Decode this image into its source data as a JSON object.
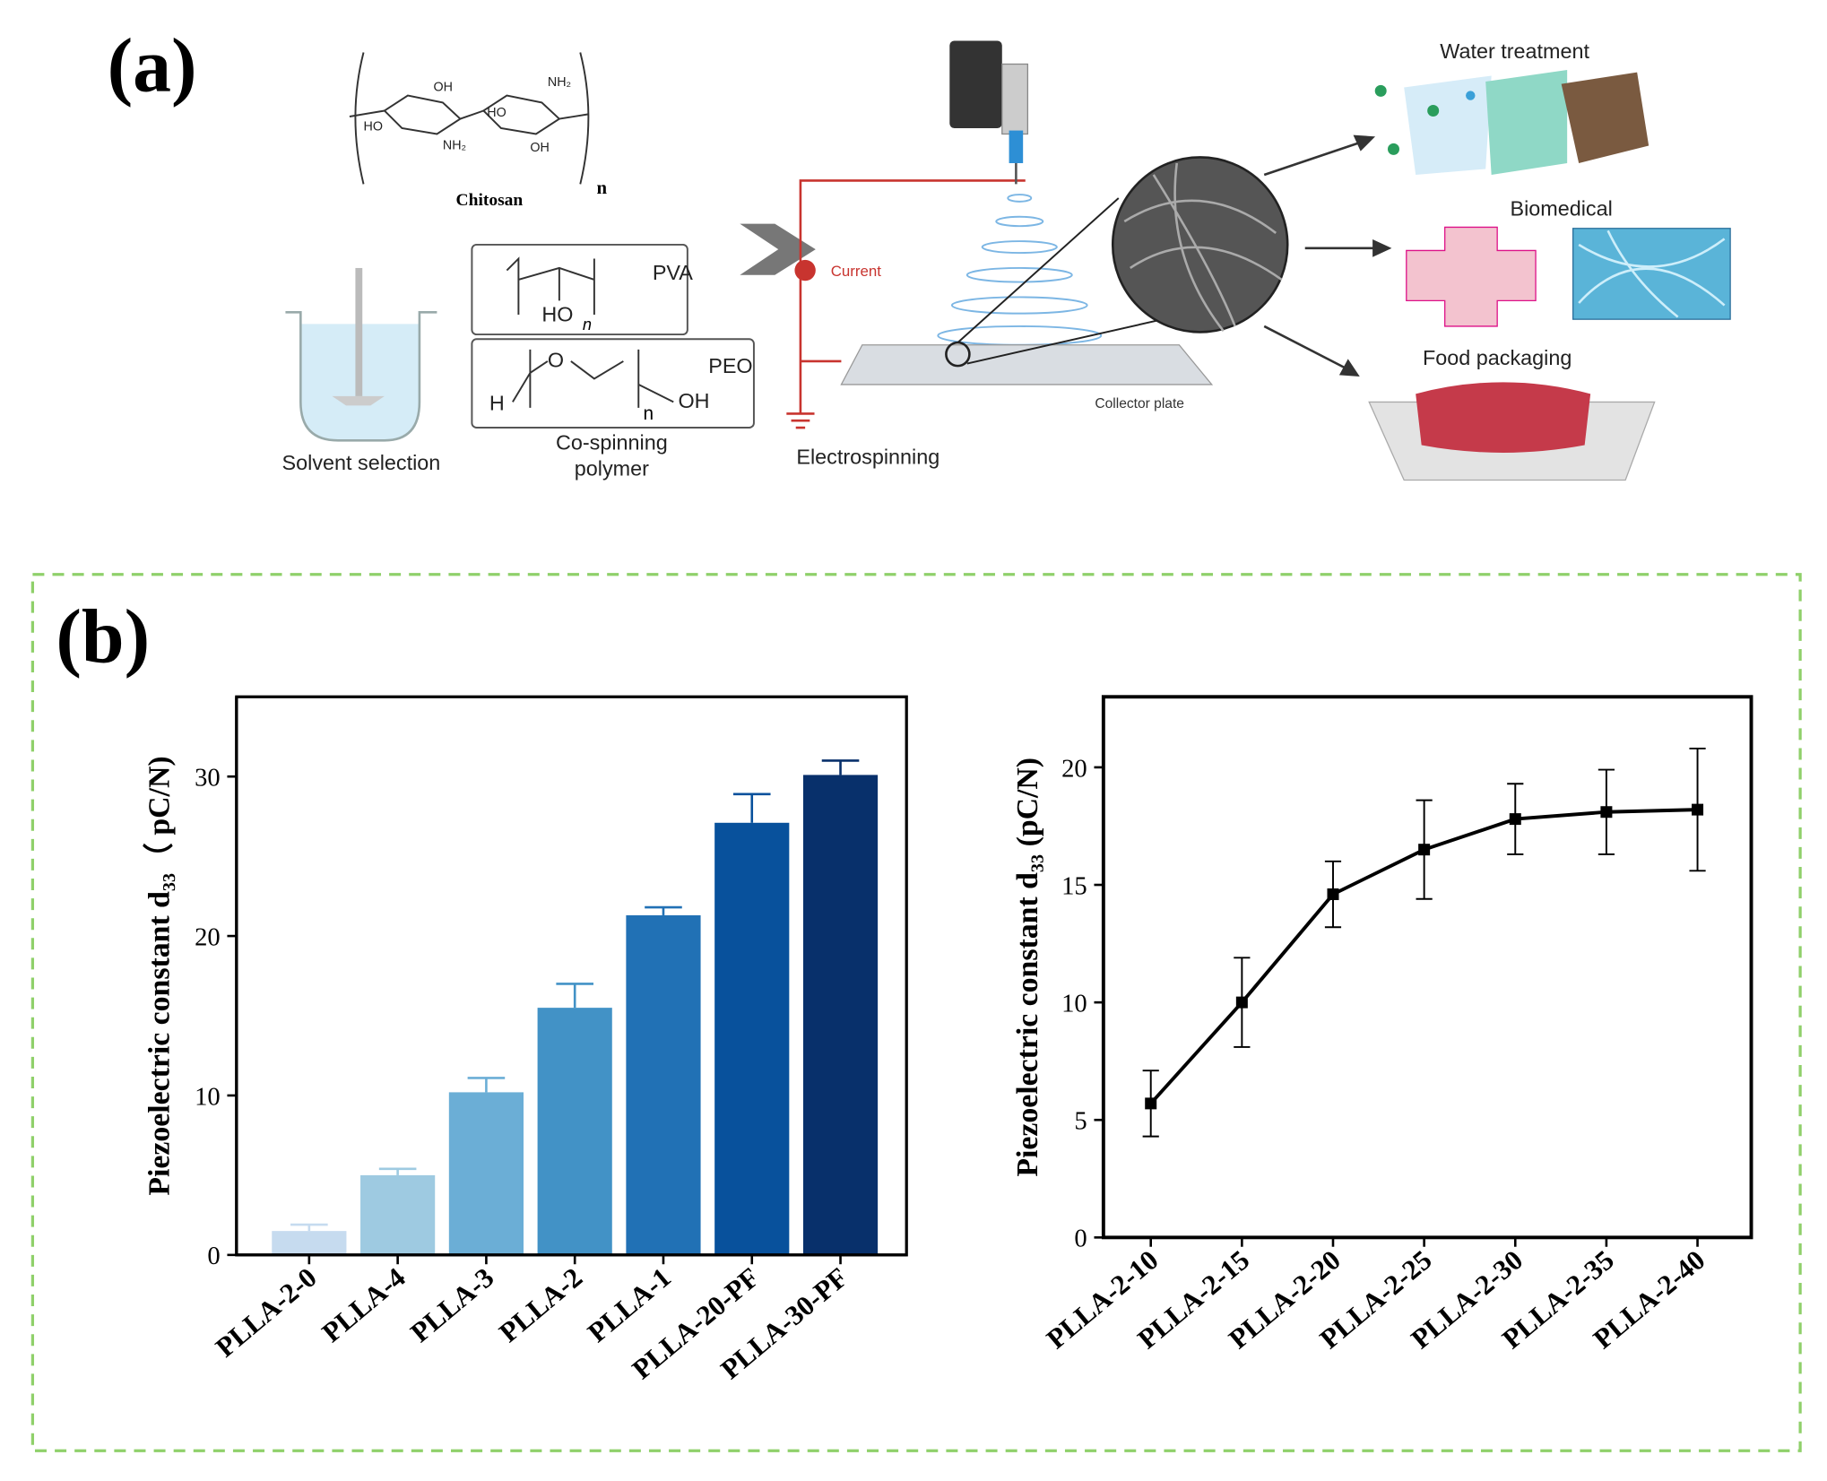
{
  "figure": {
    "panel_a": "(a)",
    "panel_b": "(b)"
  },
  "diagram": {
    "chitosan": {
      "label": "Chitosan",
      "groups": [
        "OH",
        "NH₂",
        "HO",
        "NH₂",
        "OH",
        "HO"
      ],
      "repeat": "n"
    },
    "pva": {
      "label": "PVA",
      "group": "HO",
      "repeat": "n"
    },
    "peo": {
      "label": "PEO",
      "left": "H",
      "oxygen": "O",
      "repeat": "n",
      "right": "OH"
    },
    "solvent": "Solvent selection",
    "co_spinning": [
      "Co-spinning",
      "polymer"
    ],
    "current": "Current",
    "electrospinning": "Electrospinning",
    "collector": "Collector plate",
    "applications": [
      "Water treatment",
      "Biomedical",
      "Food packaging"
    ]
  },
  "chart_data": [
    {
      "type": "bar",
      "ylabel": "Piezoelectric constant d₃₃（ pC/N)",
      "categories": [
        "PLLA-2-0",
        "PLLA-4",
        "PLLA-3",
        "PLLA-2",
        "PLLA-1",
        "PLLA-20-PF",
        "PLLA-30-PF"
      ],
      "values": [
        1.5,
        5.0,
        10.2,
        15.5,
        21.3,
        27.1,
        30.1
      ],
      "errors": [
        0.4,
        0.4,
        0.9,
        1.5,
        0.5,
        1.8,
        0.9
      ],
      "colors": [
        "#c6dbef",
        "#9ecae1",
        "#6baed6",
        "#4292c6",
        "#2171b5",
        "#08519c",
        "#08306b"
      ],
      "ylim": [
        0,
        35
      ],
      "yticks": [
        0,
        10,
        20,
        30
      ]
    },
    {
      "type": "line",
      "ylabel": "Piezoelectric constant d₃₃ (pC/N)",
      "categories": [
        "PLLA-2-10",
        "PLLA-2-15",
        "PLLA-2-20",
        "PLLA-2-25",
        "PLLA-2-30",
        "PLLA-2-35",
        "PLLA-2-40"
      ],
      "values": [
        5.7,
        10.0,
        14.6,
        16.5,
        17.8,
        18.1,
        18.2
      ],
      "errors": [
        1.4,
        1.9,
        1.4,
        2.1,
        1.5,
        1.8,
        2.6
      ],
      "color": "#000000",
      "ylim": [
        0,
        23
      ],
      "yticks": [
        0,
        5,
        10,
        15,
        20
      ]
    }
  ]
}
